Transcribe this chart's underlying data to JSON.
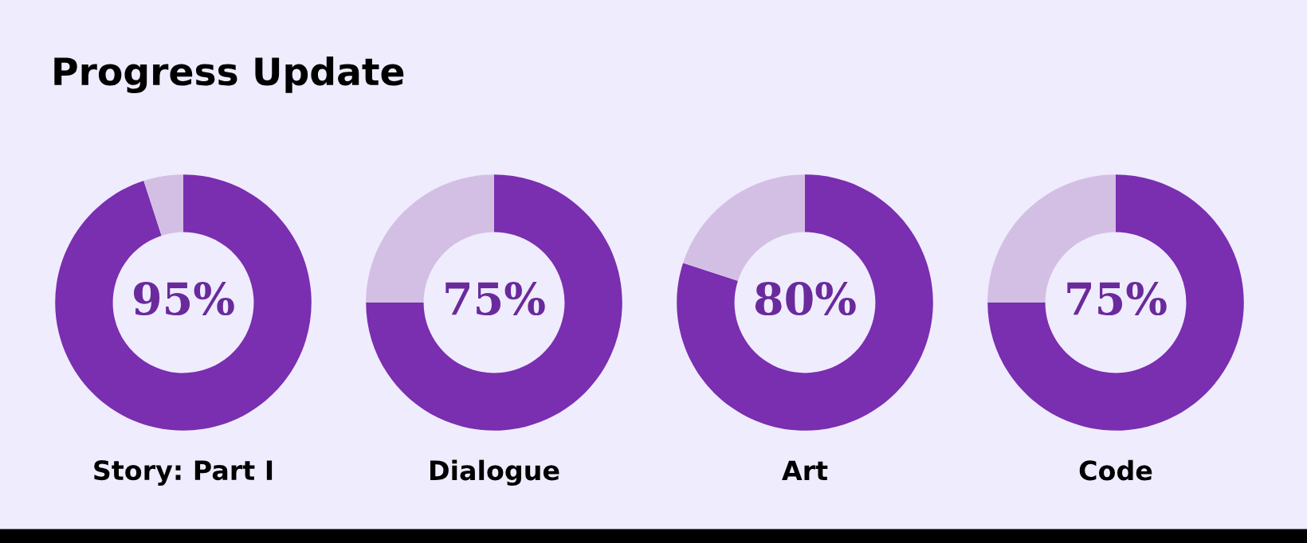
{
  "chart_data": [
    {
      "type": "donut",
      "title": "Progress Update",
      "categories": [
        null,
        null
      ],
      "values": [
        95,
        5
      ],
      "colors": [
        "#7a2eb0",
        "#d3bfe4"
      ],
      "annotations": [
        "95%"
      ],
      "xlabel": "Story: Part I"
    },
    {
      "type": "donut",
      "categories": [
        null,
        null
      ],
      "values": [
        75,
        25
      ],
      "colors": [
        "#7a2eb0",
        "#d3bfe4"
      ],
      "annotations": [
        "75%"
      ],
      "xlabel": "Dialogue"
    },
    {
      "type": "donut",
      "categories": [
        null,
        null
      ],
      "values": [
        80,
        20
      ],
      "colors": [
        "#7a2eb0",
        "#d3bfe4"
      ],
      "annotations": [
        "80%"
      ],
      "xlabel": "Art"
    },
    {
      "type": "donut",
      "categories": [
        null,
        null
      ],
      "values": [
        75,
        25
      ],
      "colors": [
        "#7a2eb0",
        "#d3bfe4"
      ],
      "annotations": [
        "75%"
      ],
      "xlabel": "Code"
    }
  ]
}
